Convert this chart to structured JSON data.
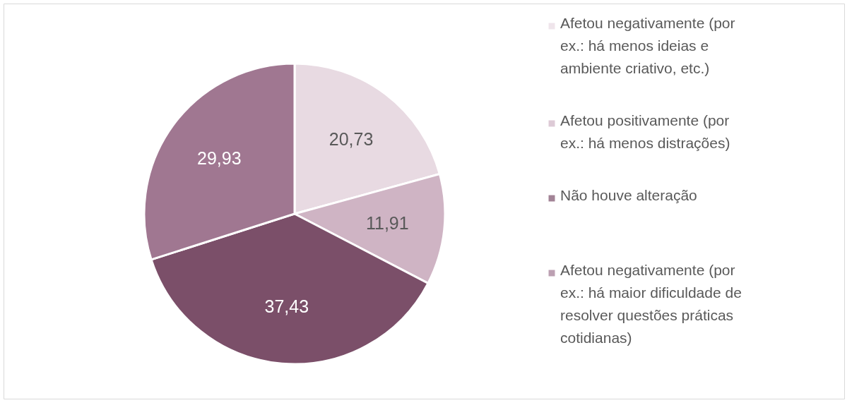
{
  "chart_data": {
    "type": "pie",
    "categories": [
      "Afetou negativamente (por ex.: há menos ideias e ambiente criativo, etc.)",
      "Afetou positivamente (por ex.: há menos distrações)",
      "Não houve alteração",
      "Afetou negativamente (por ex.: há maior dificuldade de resolver questões práticas cotidianas)"
    ],
    "values": [
      20.73,
      11.91,
      37.43,
      29.93
    ],
    "value_labels": [
      "20,73",
      "11,91",
      "37,43",
      "29,93"
    ],
    "colors": [
      "#e8dae2",
      "#cfb4c4",
      "#7b4f69",
      "#a07791"
    ],
    "legend": "right"
  }
}
